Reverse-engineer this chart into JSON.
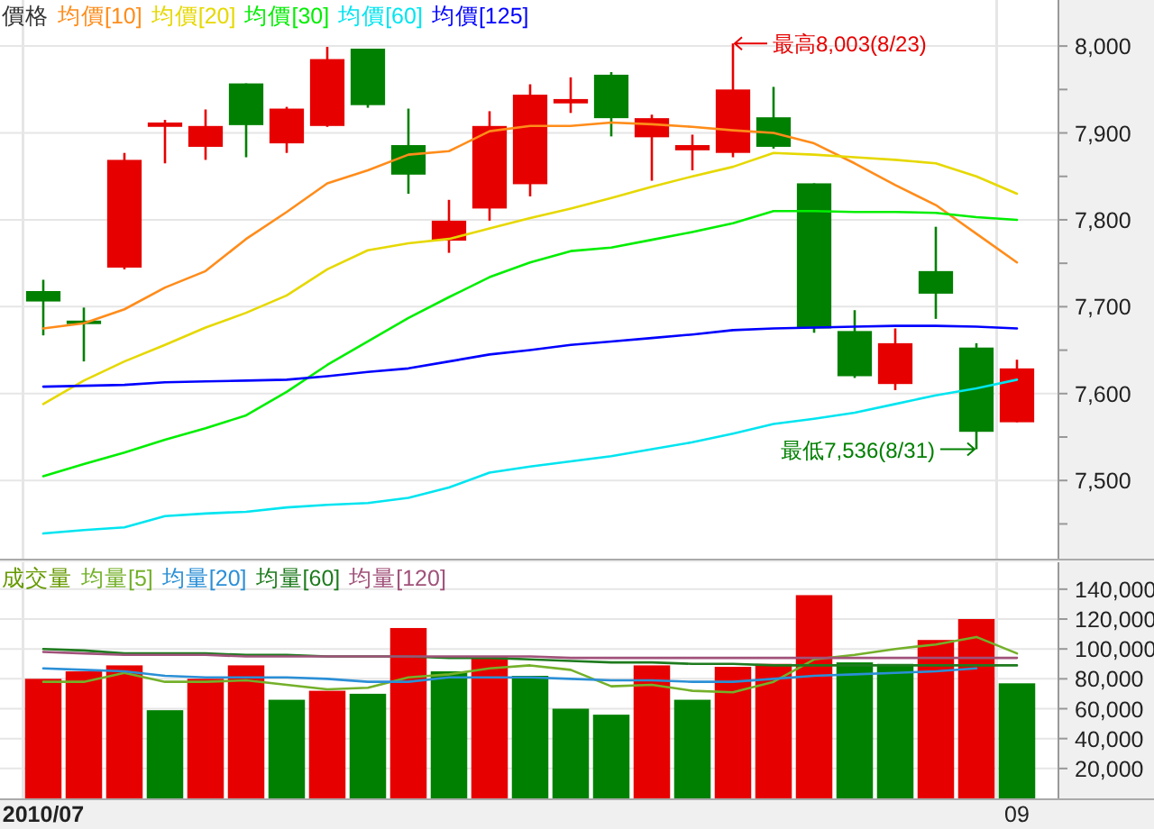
{
  "chart_data": [
    {
      "type": "candlestick",
      "legend_title": "價格",
      "legend": "top left",
      "grid": true,
      "tick_labels": "y",
      "categories": [
        "2010/07",
        null,
        null,
        null,
        null,
        null,
        null,
        null,
        null,
        null,
        null,
        null,
        null,
        null,
        null,
        null,
        null,
        null,
        null,
        null,
        null,
        null,
        null,
        null,
        "09"
      ],
      "ohlc": [
        [
          7718,
          7731,
          7667,
          7706
        ],
        [
          7684,
          7699,
          7637,
          7680
        ],
        [
          7745,
          7877,
          7743,
          7869
        ],
        [
          7907,
          7915,
          7865,
          7912
        ],
        [
          7884,
          7927,
          7869,
          7908
        ],
        [
          7957,
          7957,
          7872,
          7909
        ],
        [
          7888,
          7930,
          7877,
          7928
        ],
        [
          7908,
          7999,
          7907,
          7985
        ],
        [
          7997,
          7997,
          7929,
          7932
        ],
        [
          7886,
          7928,
          7830,
          7852
        ],
        [
          7776,
          7823,
          7762,
          7799
        ],
        [
          7813,
          7925,
          7799,
          7908
        ],
        [
          7841,
          7956,
          7827,
          7944
        ],
        [
          7934,
          7964,
          7923,
          7939
        ],
        [
          7967,
          7970,
          7896,
          7917
        ],
        [
          7895,
          7921,
          7845,
          7917
        ],
        [
          7880,
          7898,
          7857,
          7886
        ],
        [
          7877,
          8003,
          7872,
          7950
        ],
        [
          7918,
          7953,
          7882,
          7884
        ],
        [
          7842,
          7842,
          7670,
          7675
        ],
        [
          7672,
          7696,
          7618,
          7620
        ],
        [
          7611,
          7675,
          7604,
          7658
        ],
        [
          7741,
          7792,
          7686,
          7715
        ],
        [
          7653,
          7658,
          7536,
          7556
        ],
        [
          7567,
          7639,
          7567,
          7629
        ]
      ],
      "series": [
        {
          "type": "line",
          "name": "均價[10]",
          "color": "#ff8c1a",
          "values": [
            7675,
            7681,
            7697,
            7722,
            7741,
            7778,
            7809,
            7842,
            7857,
            7875,
            7879,
            7902,
            7908,
            7908,
            7912,
            7910,
            7907,
            7903,
            7900,
            7888,
            7865,
            7840,
            7817,
            7784,
            7751
          ]
        },
        {
          "type": "line",
          "name": "均價[20]",
          "color": "#e6d800",
          "values": [
            7588,
            7615,
            7637,
            7656,
            7676,
            7693,
            7713,
            7743,
            7765,
            7773,
            7778,
            7790,
            7802,
            7813,
            7825,
            7838,
            7850,
            7861,
            7877,
            7875,
            7872,
            7869,
            7865,
            7850,
            7830
          ]
        },
        {
          "type": "line",
          "name": "均價[30]",
          "color": "#00ee00",
          "values": [
            7505,
            7519,
            7532,
            7547,
            7560,
            7575,
            7602,
            7633,
            7660,
            7687,
            7711,
            7734,
            7751,
            7764,
            7768,
            7777,
            7786,
            7796,
            7810,
            7810,
            7809,
            7809,
            7808,
            7803,
            7800
          ]
        },
        {
          "type": "line",
          "name": "均價[60]",
          "color": "#00e5f0",
          "values": [
            7439,
            7443,
            7446,
            7459,
            7462,
            7464,
            7469,
            7472,
            7474,
            7480,
            7492,
            7509,
            7516,
            7522,
            7528,
            7536,
            7544,
            7554,
            7565,
            7571,
            7578,
            7588,
            7598,
            7606,
            7616
          ]
        },
        {
          "type": "line",
          "name": "均價[125]",
          "color": "#0000ff",
          "values": [
            7608,
            7609,
            7610,
            7613,
            7614,
            7615,
            7616,
            7620,
            7625,
            7629,
            7637,
            7645,
            7650,
            7656,
            7660,
            7664,
            7668,
            7673,
            7675,
            7676,
            7677,
            7678,
            7678,
            7677,
            7675
          ]
        }
      ],
      "ylim": [
        7410,
        8053
      ],
      "yticks": [
        {
          "value": 7450,
          "label": null
        },
        {
          "value": 7500,
          "label": "7,500"
        },
        {
          "value": 7550,
          "label": null
        },
        {
          "value": 7600,
          "label": "7,600"
        },
        {
          "value": 7650,
          "label": null
        },
        {
          "value": 7700,
          "label": "7,700"
        },
        {
          "value": 7750,
          "label": null
        },
        {
          "value": 7800,
          "label": "7,800"
        },
        {
          "value": 7850,
          "label": null
        },
        {
          "value": 7900,
          "label": "7,900"
        },
        {
          "value": 7950,
          "label": null
        },
        {
          "value": 8000,
          "label": "8,000"
        }
      ],
      "annotations": [
        "最高8,003(8/23)",
        "最低7,536(8/31)"
      ]
    },
    {
      "type": "bar",
      "legend_title": "成交量",
      "legend": "top left",
      "grid": true,
      "categories": [
        "2010/07",
        null,
        null,
        null,
        null,
        null,
        null,
        null,
        null,
        null,
        null,
        null,
        null,
        null,
        null,
        null,
        null,
        null,
        null,
        null,
        null,
        null,
        null,
        null,
        "09"
      ],
      "series": [
        {
          "type": "bar",
          "colors": [
            "#e60000",
            "#e60000",
            "#e60000",
            "#008000",
            "#e60000",
            "#e60000",
            "#008000",
            "#e60000",
            "#008000",
            "#e60000",
            "#008000",
            "#e60000",
            "#008000",
            "#008000",
            "#008000",
            "#e60000",
            "#008000",
            "#e60000",
            "#e60000",
            "#e60000",
            "#008000",
            "#008000",
            "#e60000",
            "#e60000",
            "#008000"
          ],
          "values": [
            80000,
            85000,
            89000,
            59000,
            80000,
            89000,
            66000,
            72000,
            70000,
            114000,
            85000,
            95000,
            82000,
            60000,
            56000,
            89000,
            66000,
            88000,
            90000,
            136000,
            91000,
            90000,
            106000,
            120000,
            77000
          ]
        },
        {
          "type": "line",
          "name": "均量[5]",
          "color": "#74b02a",
          "values": [
            78000,
            78000,
            84000,
            78000,
            78000,
            79000,
            76000,
            73000,
            74000,
            81000,
            83000,
            87000,
            89000,
            86000,
            75000,
            76000,
            72000,
            71000,
            78000,
            93000,
            96000,
            100000,
            103000,
            108000,
            97000
          ]
        },
        {
          "type": "line",
          "name": "均量[20]",
          "color": "#2b8fd6",
          "values": [
            87000,
            86000,
            85000,
            82000,
            81000,
            81000,
            81000,
            80000,
            78000,
            78000,
            81000,
            81000,
            81000,
            80000,
            79000,
            79000,
            78000,
            78000,
            80000,
            82000,
            83000,
            84000,
            85000,
            87000,
            null
          ]
        },
        {
          "type": "line",
          "name": "均量[60]",
          "color": "#1e7b1e",
          "values": [
            100000,
            99000,
            97000,
            97000,
            97000,
            96000,
            96000,
            95000,
            95000,
            95000,
            94000,
            94000,
            93000,
            92000,
            91000,
            91000,
            90000,
            90000,
            89000,
            89000,
            89000,
            89000,
            89000,
            89000,
            89000
          ]
        },
        {
          "type": "line",
          "name": "均量[120]",
          "color": "#a0527a",
          "values": [
            98000,
            97000,
            96000,
            96000,
            96000,
            95000,
            95000,
            95000,
            95000,
            95000,
            95000,
            95000,
            95000,
            94000,
            94000,
            94000,
            94000,
            94000,
            94000,
            94000,
            94000,
            94000,
            94000,
            94000,
            94000
          ]
        }
      ],
      "ylim": [
        0,
        158000
      ],
      "yticks": [
        {
          "value": 20000,
          "label": "20,000"
        },
        {
          "value": 40000,
          "label": "40,000"
        },
        {
          "value": 60000,
          "label": "60,000"
        },
        {
          "value": 80000,
          "label": "80,000"
        },
        {
          "value": 100000,
          "label": "100,000"
        },
        {
          "value": 120000,
          "label": "120,000"
        },
        {
          "value": 140000,
          "label": "140,000"
        }
      ]
    }
  ]
}
